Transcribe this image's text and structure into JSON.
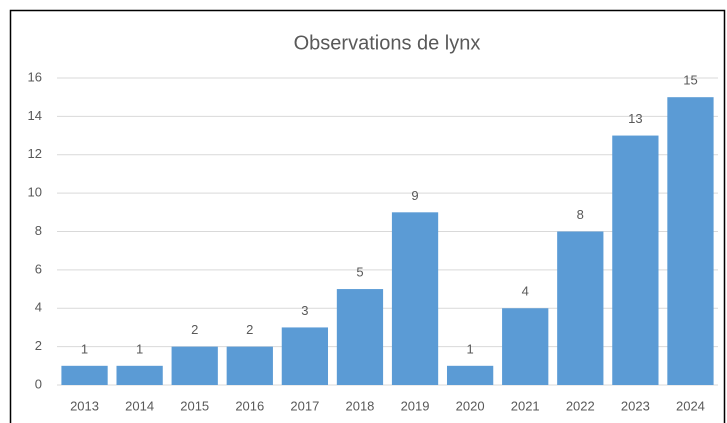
{
  "chart_data": {
    "type": "bar",
    "title": "Observations de lynx",
    "categories": [
      "2013",
      "2014",
      "2015",
      "2016",
      "2017",
      "2018",
      "2019",
      "2020",
      "2021",
      "2022",
      "2023",
      "2024"
    ],
    "values": [
      1,
      1,
      2,
      2,
      3,
      5,
      9,
      1,
      4,
      8,
      13,
      15
    ],
    "color": "#5b9bd5",
    "ylim": [
      0,
      16
    ],
    "yticks": [
      0,
      2,
      4,
      6,
      8,
      10,
      12,
      14,
      16
    ],
    "grid": true
  }
}
